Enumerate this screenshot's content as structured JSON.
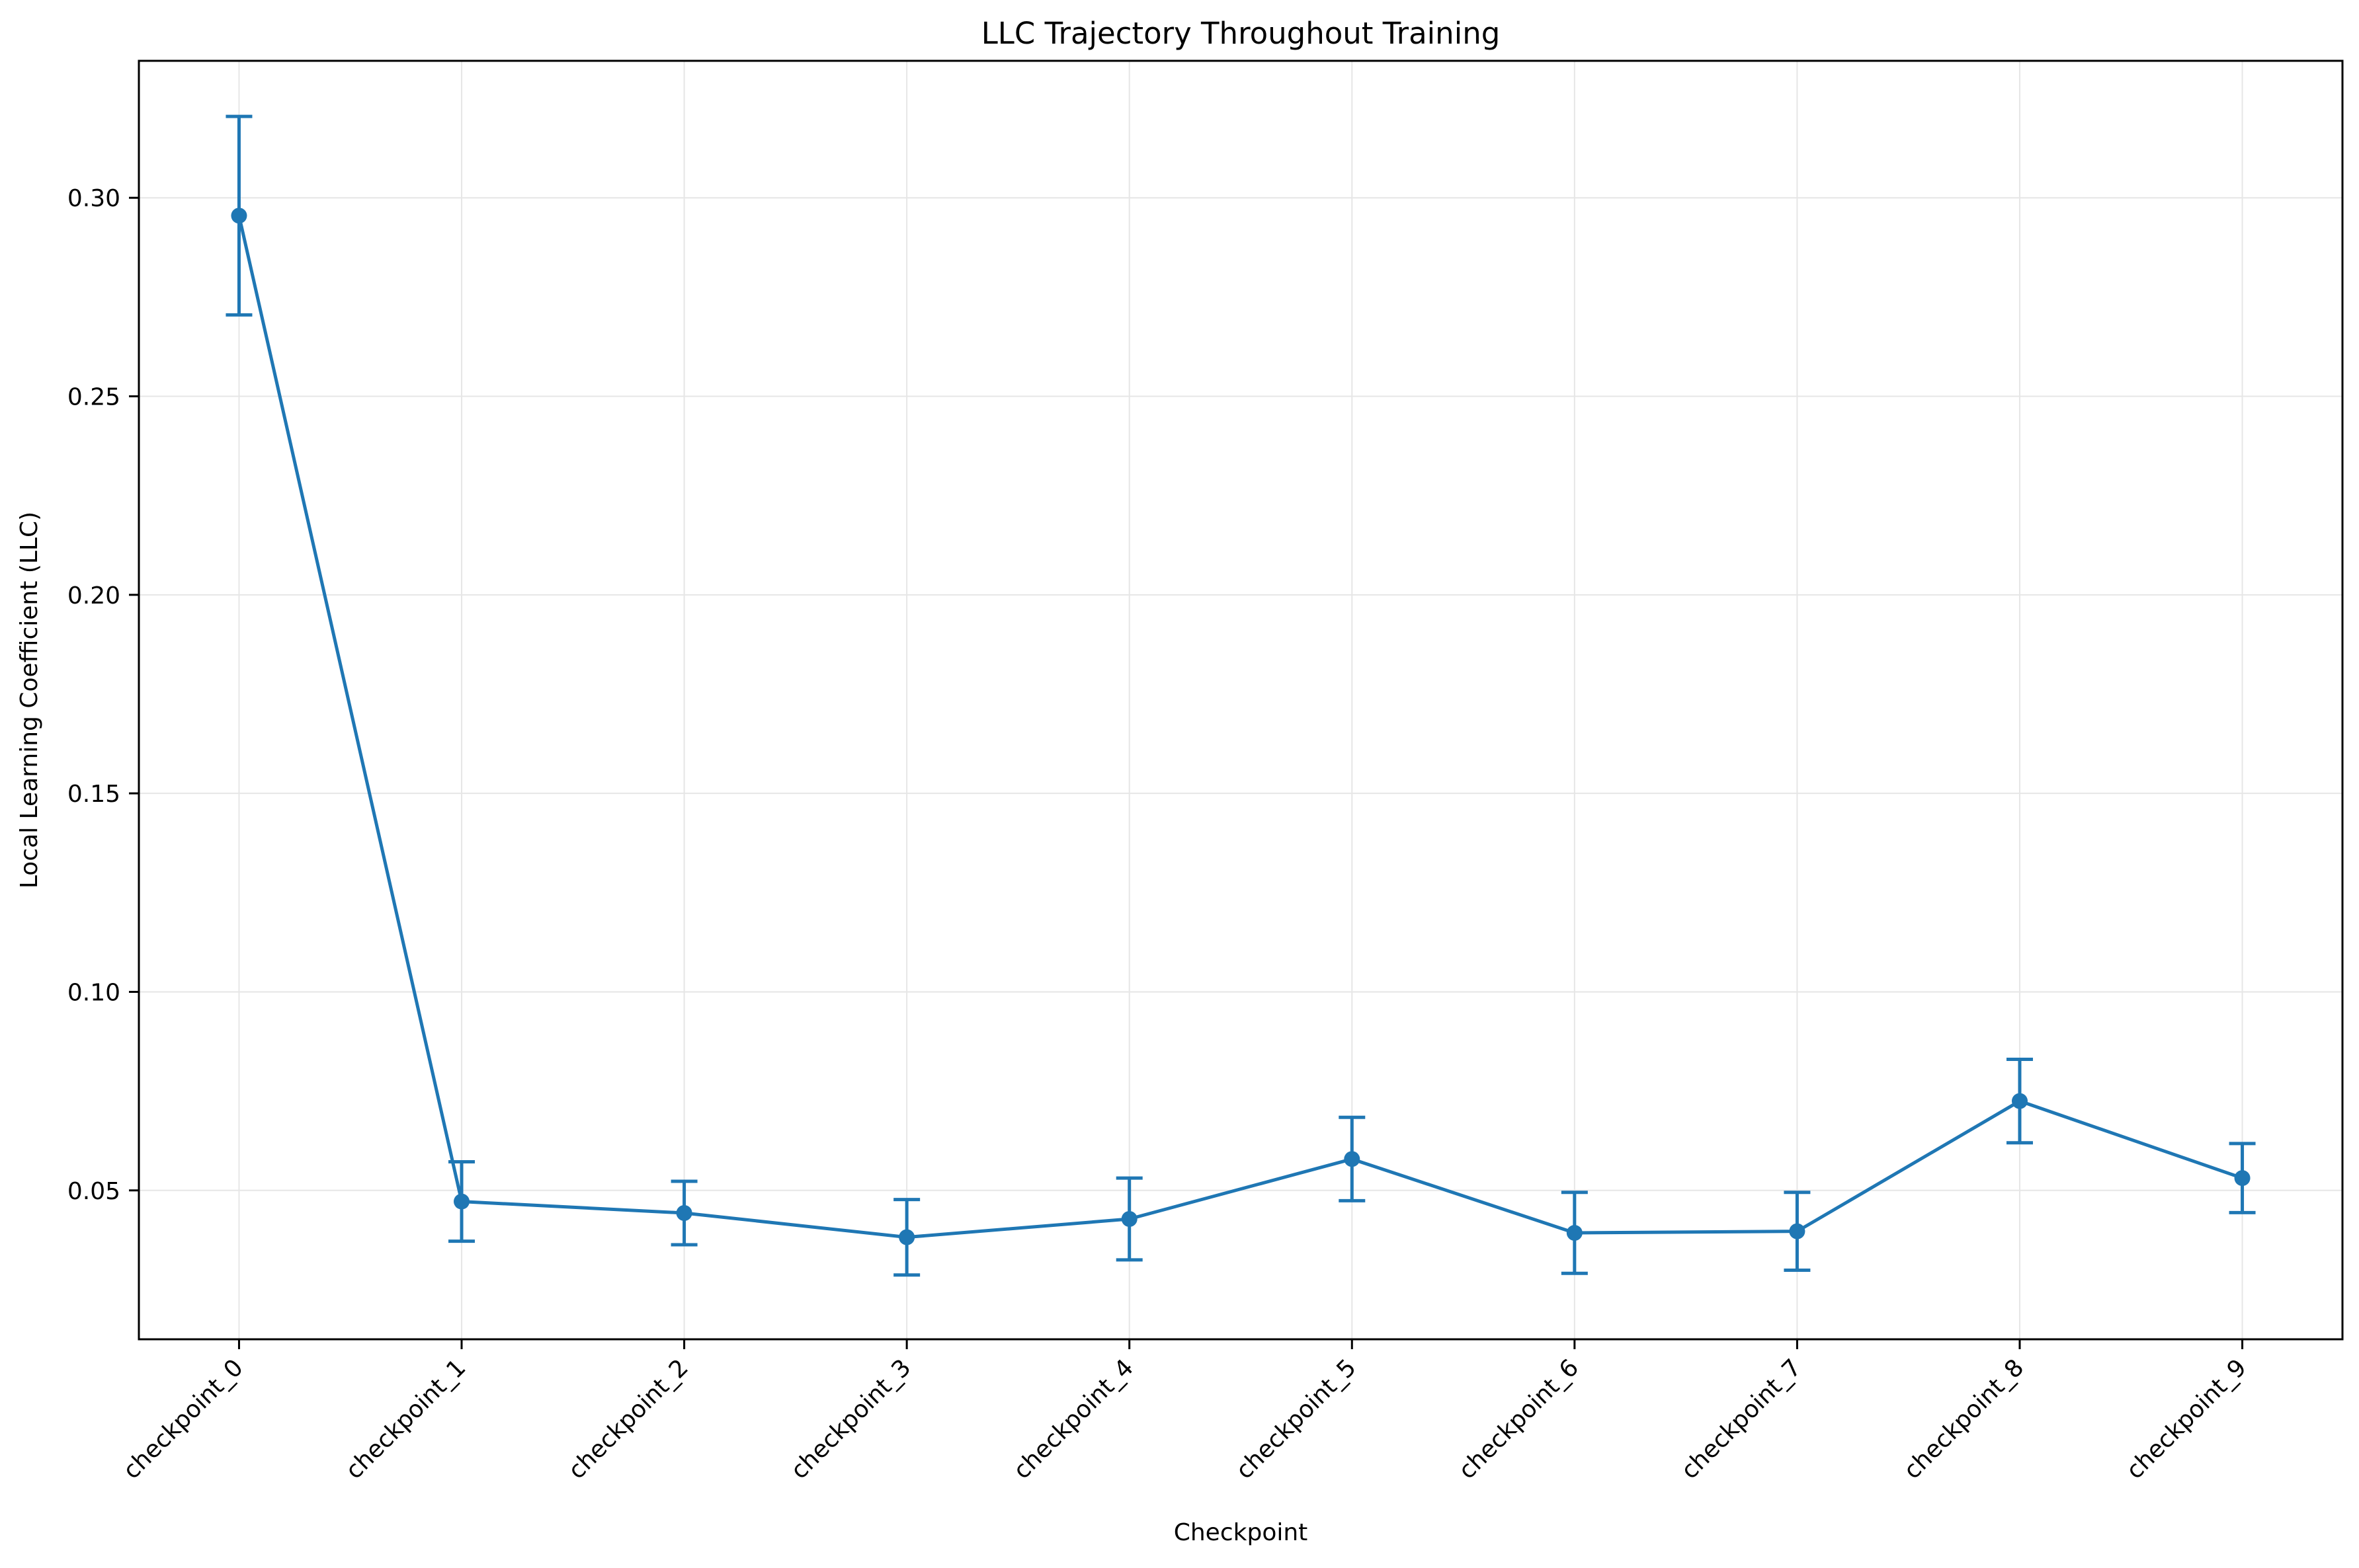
{
  "chart_data": {
    "type": "line",
    "title": "LLC Trajectory Throughout Training",
    "xlabel": "Checkpoint",
    "ylabel": "Local Learning Coefficient (LLC)",
    "categories": [
      "checkpoint_0",
      "checkpoint_1",
      "checkpoint_2",
      "checkpoint_3",
      "checkpoint_4",
      "checkpoint_5",
      "checkpoint_6",
      "checkpoint_7",
      "checkpoint_8",
      "checkpoint_9"
    ],
    "series": [
      {
        "values": [
          0.2955,
          0.0472,
          0.0443,
          0.0382,
          0.0428,
          0.0579,
          0.0393,
          0.0397,
          0.0725,
          0.0531
        ],
        "error": [
          0.025,
          0.01,
          0.008,
          0.0095,
          0.0103,
          0.0105,
          0.0102,
          0.0098,
          0.0105,
          0.0087
        ],
        "color": "#1f77b4"
      }
    ],
    "ylim": [
      0.0125,
      0.3345
    ],
    "yticks": [
      0.05,
      0.1,
      0.15,
      0.2,
      0.25,
      0.3
    ],
    "ytick_labels": [
      "0.05",
      "0.10",
      "0.15",
      "0.20",
      "0.25",
      "0.30"
    ],
    "grid": true,
    "xtick_rotation": 45,
    "colors": {
      "series": "#1f77b4",
      "grid": "#e6e6e6",
      "axes": "#000000"
    }
  }
}
